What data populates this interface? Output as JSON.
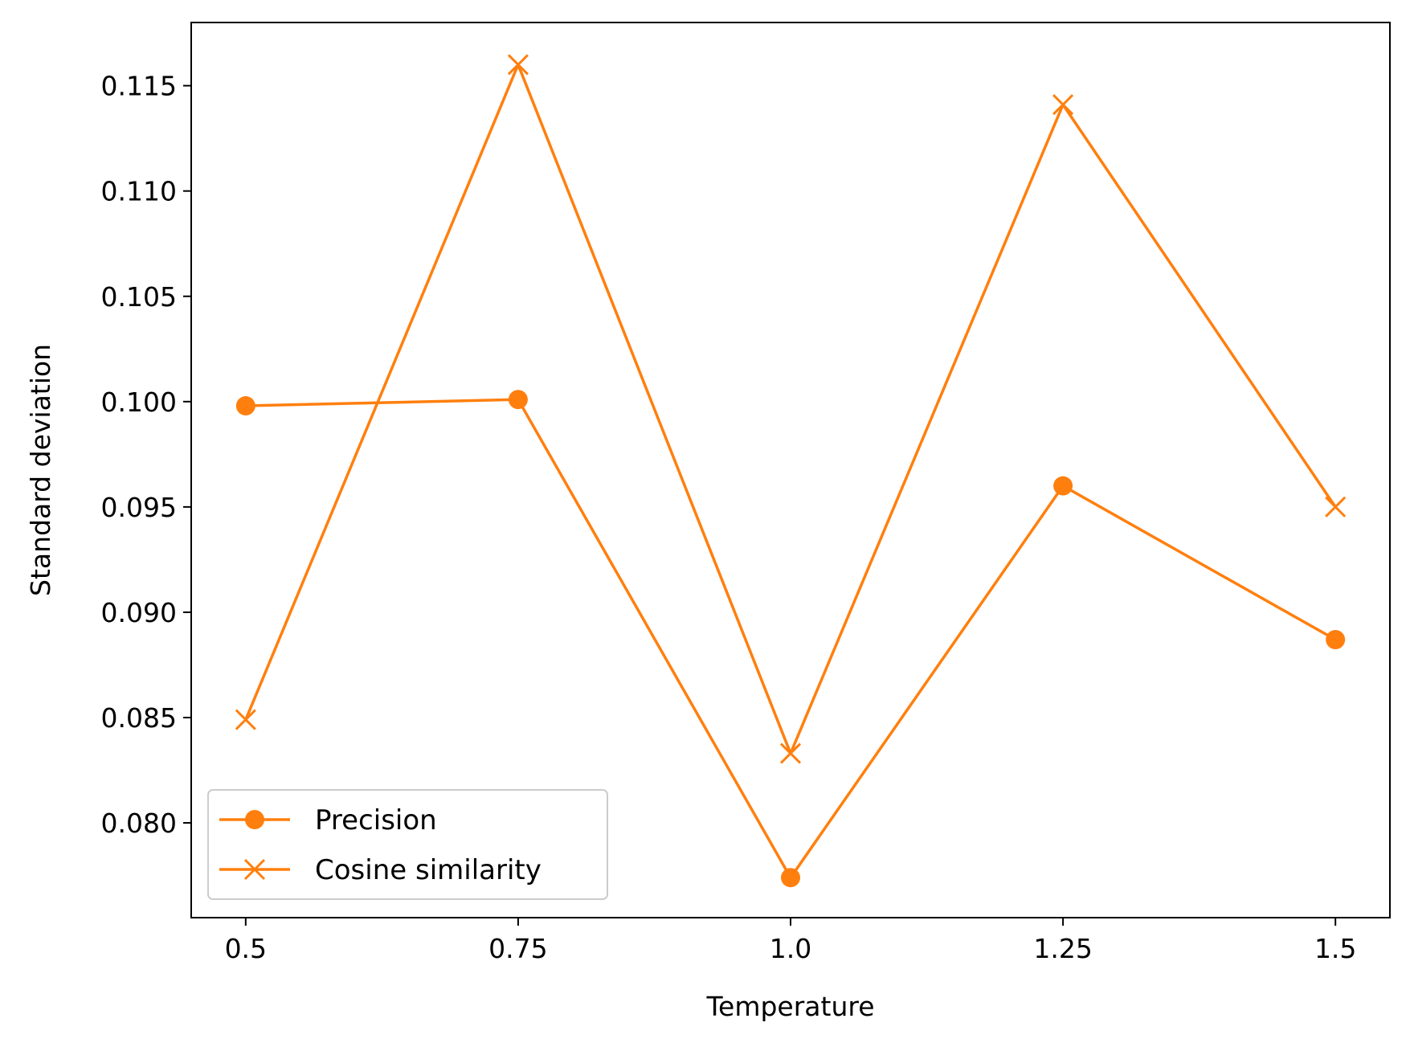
{
  "chart_data": {
    "type": "line",
    "xlabel": "Temperature",
    "ylabel": "Standard deviation",
    "x": [
      0.5,
      0.75,
      1.0,
      1.25,
      1.5
    ],
    "x_tick_labels": [
      "0.5",
      "0.75",
      "1.0",
      "1.25",
      "1.5"
    ],
    "xlim": [
      0.45,
      1.55
    ],
    "y_ticks": [
      0.08,
      0.085,
      0.09,
      0.095,
      0.1,
      0.105,
      0.11,
      0.115
    ],
    "y_tick_labels": [
      "0.080",
      "0.085",
      "0.090",
      "0.095",
      "0.100",
      "0.105",
      "0.110",
      "0.115"
    ],
    "ylim": [
      0.0755,
      0.118
    ],
    "grid": false,
    "legend_position": "lower-left",
    "series": [
      {
        "name": "Precision",
        "marker": "circle",
        "color": "#ff7f0e",
        "values": [
          0.0998,
          0.1001,
          0.0774,
          0.096,
          0.0887
        ]
      },
      {
        "name": "Cosine similarity",
        "marker": "x",
        "color": "#ff7f0e",
        "values": [
          0.0849,
          0.116,
          0.0833,
          0.1141,
          0.095
        ]
      }
    ]
  }
}
